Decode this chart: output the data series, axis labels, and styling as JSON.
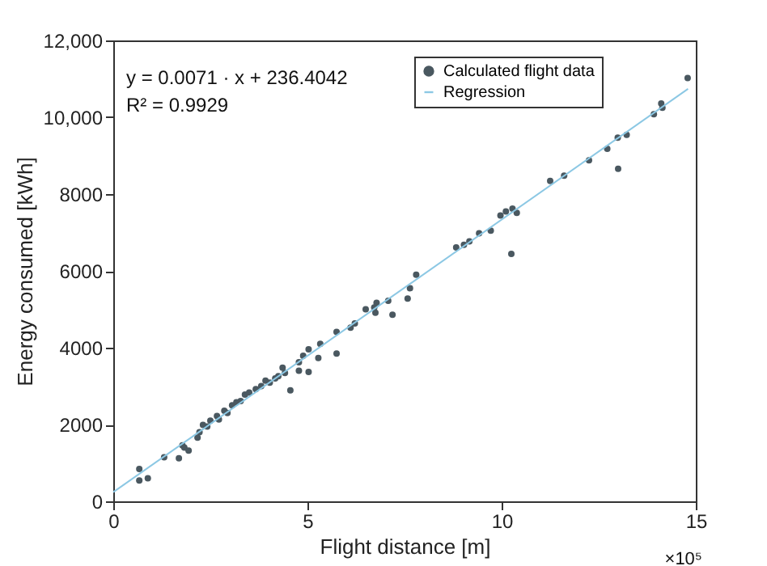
{
  "chart_data": {
    "type": "scatter",
    "xlabel": "Flight distance [m]",
    "ylabel": "Energy consumed [kWh]",
    "annotations": [
      "y = 0.0071 · x + 236.4042",
      "R² = 0.9929",
      "×10⁵"
    ],
    "xlim": [
      0,
      15
    ],
    "xticks": [
      0,
      5,
      10,
      15
    ],
    "ylim": [
      0,
      12000
    ],
    "yticks": [
      0,
      2000,
      4000,
      6000,
      8000,
      {
        "value": 10000,
        "label": "10,000"
      },
      {
        "value": 12000,
        "label": "12,000"
      }
    ],
    "grid": false,
    "legend": "top right",
    "series": [
      {
        "name": "Calculated flight data",
        "marker": "circle",
        "color": "#4a5860",
        "x": [
          0.67,
          0.67,
          0.89,
          1.31,
          1.69,
          1.78,
          1.83,
          1.94,
          2.17,
          2.22,
          2.31,
          2.42,
          2.5,
          2.67,
          2.72,
          2.86,
          2.94,
          3.06,
          3.17,
          3.28,
          3.39,
          3.5,
          3.67,
          3.81,
          3.92,
          4.03,
          4.17,
          4.25,
          4.36,
          4.42,
          4.56,
          4.78,
          4.89,
          4.78,
          5.03,
          5.03,
          5.28,
          5.33,
          5.75,
          5.75,
          6.11,
          6.22,
          6.5,
          6.72,
          6.75,
          6.78,
          7.08,
          7.19,
          7.58,
          7.64,
          7.8,
          8.83,
          9.03,
          9.17,
          9.42,
          9.72,
          9.97,
          10.11,
          10.28,
          10.39,
          10.25,
          11.25,
          11.61,
          12.25,
          12.72,
          13.0,
          12.99,
          13.22,
          13.92,
          14.11,
          14.14,
          14.79
        ],
        "values": [
          840,
          540,
          600,
          1150,
          1120,
          1460,
          1400,
          1320,
          1660,
          1800,
          1990,
          1950,
          2100,
          2220,
          2130,
          2360,
          2300,
          2500,
          2580,
          2610,
          2780,
          2830,
          2920,
          3000,
          3140,
          3090,
          3200,
          3260,
          3480,
          3340,
          2890,
          3620,
          3790,
          3400,
          3960,
          3370,
          3730,
          4100,
          4410,
          3850,
          4520,
          4630,
          5000,
          5050,
          4910,
          5170,
          5220,
          4860,
          5280,
          5550,
          5900,
          6610,
          6680,
          6770,
          6980,
          7050,
          7440,
          7550,
          7620,
          7510,
          6440,
          8340,
          8480,
          8880,
          9180,
          8660,
          9470,
          9540,
          10080,
          10360,
          10250,
          11020
        ]
      },
      {
        "name": "Regression",
        "type": "line",
        "marker": "none",
        "line_style": "solid",
        "color": "#8cc8e4",
        "x": [
          0,
          14.8
        ],
        "values": [
          240,
          10740
        ]
      }
    ]
  }
}
